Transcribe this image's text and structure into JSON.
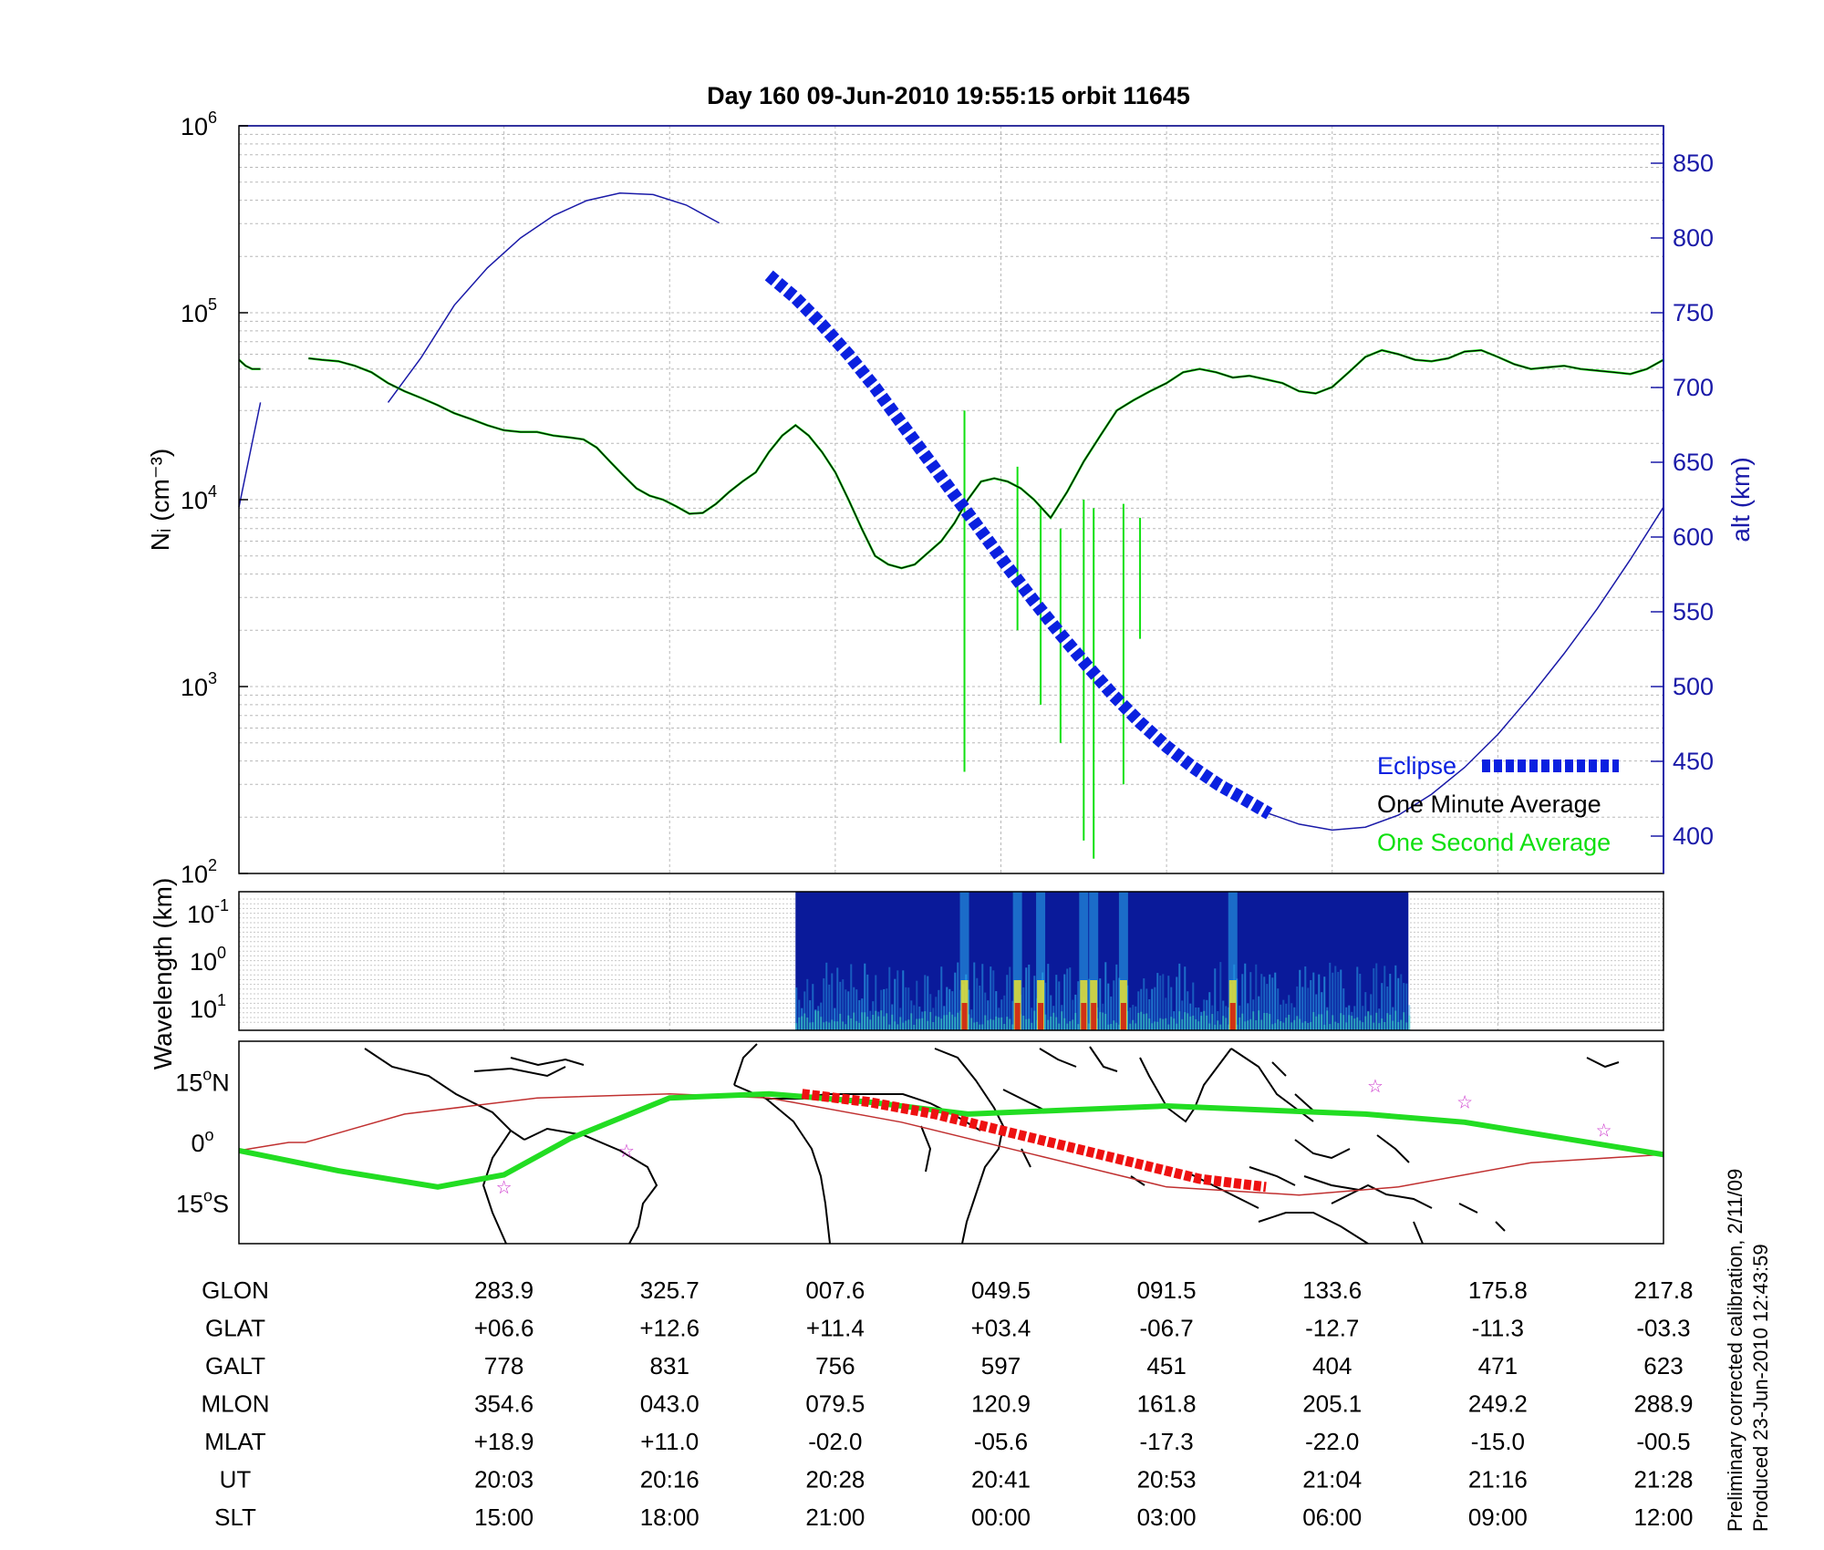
{
  "title": "Day 160  09-Jun-2010 19:55:15   orbit 11645",
  "colors": {
    "altitude": "#1a1aa8",
    "eclipse": "#0a20e0",
    "one_minute": "#000000",
    "one_second": "#10e010",
    "ground_track": "#22dd22",
    "orbit_line": "#c03030",
    "map_eclipse": "#ee1111",
    "stars": "#cc33cc",
    "spectro_bg": "#0a1a9a"
  },
  "chart_data": [
    {
      "type": "line",
      "ylabel": "Nᵢ (cm⁻³)",
      "y2label": "alt (km)",
      "yscale": "log",
      "ylim": [
        100,
        1000000
      ],
      "y_ticks": [
        {
          "value": 100,
          "base": "10",
          "exp": "2"
        },
        {
          "value": 1000,
          "base": "10",
          "exp": "3"
        },
        {
          "value": 10000,
          "base": "10",
          "exp": "4"
        },
        {
          "value": 100000,
          "base": "10",
          "exp": "5"
        },
        {
          "value": 1000000,
          "base": "10",
          "exp": "6"
        }
      ],
      "y2lim": [
        375,
        875
      ],
      "y2_ticks": [
        "400",
        "450",
        "500",
        "550",
        "600",
        "650",
        "700",
        "750",
        "800",
        "850"
      ],
      "grid": true,
      "legend": {
        "placement": "bottom-right",
        "entries": [
          "Eclipse",
          "One Minute Average",
          "One Second Average"
        ]
      },
      "series": [
        {
          "name": "One Minute Average",
          "segments": [
            {
              "x": [
                0.0,
                0.2,
                0.4,
                0.65
              ],
              "y": [
                56000,
                52000,
                50000,
                50000
              ]
            },
            {
              "x": [
                2.1,
                2.5,
                3.0,
                3.5,
                4.0,
                4.5,
                5.0,
                5.5,
                6.0,
                6.5,
                7.0,
                7.5,
                8.0,
                8.5,
                9.0,
                9.5,
                10.0,
                10.4,
                10.8,
                11.2,
                11.6,
                12.0,
                12.4,
                12.8,
                13.2,
                13.6,
                14.0,
                14.4,
                14.8,
                15.2,
                15.6,
                16.0,
                16.4,
                16.8,
                17.2,
                17.6,
                18.0,
                18.4,
                18.8,
                19.2,
                19.6,
                20.0,
                20.4,
                20.8,
                21.2,
                21.6,
                22.0,
                22.4,
                22.8,
                23.2,
                23.6,
                24.0,
                24.5,
                25.0,
                25.5,
                26.0,
                26.5,
                27.0,
                27.5,
                28.0,
                28.5,
                29.0,
                29.5,
                30.0,
                30.5,
                31.0,
                31.5,
                32.0,
                32.5,
                33.0,
                33.5,
                34.0,
                34.5,
                35.0,
                35.5,
                36.0,
                36.5,
                37.0,
                37.5,
                38.0,
                38.5,
                39.0,
                39.5,
                40.0,
                40.5,
                41.0,
                41.5,
                42.0,
                42.5,
                43.0
              ],
              "y": [
                57000,
                56000,
                55000,
                52000,
                48000,
                42000,
                38000,
                35000,
                32000,
                29000,
                27000,
                25000,
                23500,
                23000,
                23000,
                22000,
                21500,
                21000,
                19000,
                16000,
                13500,
                11500,
                10500,
                10000,
                9200,
                8400,
                8500,
                9500,
                11000,
                12500,
                14000,
                18000,
                22000,
                25000,
                22000,
                18000,
                14000,
                10000,
                7000,
                5000,
                4500,
                4300,
                4500,
                5200,
                6000,
                7500,
                10000,
                12500,
                13000,
                12500,
                11500,
                10000,
                8000,
                11000,
                16000,
                22000,
                30000,
                34000,
                38000,
                42000,
                48000,
                50000,
                48000,
                45000,
                46000,
                44000,
                42000,
                38000,
                37000,
                40000,
                48000,
                58000,
                63000,
                60000,
                56000,
                55000,
                57000,
                62000,
                63000,
                58000,
                53000,
                50000,
                51000,
                52000,
                50000,
                49000,
                48000,
                47000,
                50000,
                56000
              ]
            }
          ]
        },
        {
          "name": "One Second Average",
          "segments": [
            {
              "x": [
                0.0,
                0.2,
                0.4,
                0.65
              ],
              "y": [
                56000,
                52000,
                50000,
                50000
              ]
            },
            {
              "x": [
                2.1,
                2.5,
                3.0,
                3.5,
                4.0,
                4.5,
                5.0,
                5.5,
                6.0,
                6.5,
                7.0,
                7.5,
                8.0,
                8.5,
                9.0,
                9.5,
                10.0,
                10.4,
                10.8,
                11.2,
                11.6,
                12.0,
                12.4,
                12.8,
                13.2,
                13.6,
                14.0,
                14.4,
                14.8,
                15.2,
                15.6,
                16.0,
                16.4,
                16.8,
                17.2,
                17.6,
                18.0,
                18.4,
                18.8,
                19.2,
                19.6,
                20.0,
                20.4,
                20.8,
                21.2,
                21.6,
                22.0,
                22.4,
                22.8,
                23.2,
                23.6,
                24.0,
                24.5,
                25.0,
                25.5,
                26.0,
                26.5,
                27.0,
                27.5,
                28.0,
                28.5,
                29.0,
                29.5,
                30.0,
                30.5,
                31.0,
                31.5,
                32.0,
                32.5,
                33.0,
                33.5,
                34.0,
                34.5,
                35.0,
                35.5,
                36.0,
                36.5,
                37.0,
                37.5,
                38.0,
                38.5,
                39.0,
                39.5,
                40.0,
                40.5,
                41.0,
                41.5,
                42.0,
                42.5,
                43.0
              ],
              "y": [
                57000,
                56000,
                55000,
                52000,
                48000,
                42000,
                38000,
                35000,
                32000,
                29000,
                27000,
                25000,
                23500,
                23000,
                23000,
                22000,
                21500,
                21000,
                19000,
                16000,
                13500,
                11500,
                10500,
                10000,
                9200,
                8400,
                8500,
                9500,
                11000,
                12500,
                14000,
                18000,
                22000,
                25000,
                22000,
                18000,
                14000,
                10000,
                7000,
                5000,
                4500,
                4300,
                4500,
                5200,
                6000,
                7500,
                10000,
                12500,
                13000,
                12500,
                11500,
                10000,
                8000,
                11000,
                16000,
                22000,
                30000,
                34000,
                38000,
                42000,
                48000,
                50000,
                48000,
                45000,
                46000,
                44000,
                42000,
                38000,
                37000,
                40000,
                48000,
                58000,
                63000,
                60000,
                56000,
                55000,
                57000,
                62000,
                63000,
                58000,
                53000,
                50000,
                51000,
                52000,
                50000,
                49000,
                48000,
                47000,
                50000,
                56000
              ]
            }
          ],
          "spikes": [
            {
              "x": 21.9,
              "y_low": 350,
              "y_high": 30000
            },
            {
              "x": 23.5,
              "y_low": 2000,
              "y_high": 15000
            },
            {
              "x": 24.2,
              "y_low": 800,
              "y_high": 9000
            },
            {
              "x": 24.8,
              "y_low": 500,
              "y_high": 7000
            },
            {
              "x": 25.5,
              "y_low": 150,
              "y_high": 10000
            },
            {
              "x": 25.8,
              "y_low": 120,
              "y_high": 9000
            },
            {
              "x": 26.7,
              "y_low": 300,
              "y_high": 9500
            },
            {
              "x": 27.2,
              "y_low": 1800,
              "y_high": 8000
            }
          ]
        },
        {
          "name": "alt (km)",
          "axis": "right",
          "segments": [
            {
              "x": [
                0.0,
                0.65
              ],
              "y": [
                620,
                690
              ]
            },
            {
              "x": [
                4.5,
                5.5,
                6.5,
                7.5,
                8.5,
                9.5,
                10.5,
                11.5,
                12.5,
                13.5,
                14.5
              ],
              "y": [
                690,
                720,
                755,
                780,
                800,
                815,
                825,
                830,
                829,
                822,
                810
              ]
            }
          ]
        },
        {
          "name": "Eclipse",
          "axis": "right",
          "x": [
            16.0,
            16.8,
            17.6,
            18.4,
            19.2,
            20.0,
            20.8,
            21.6,
            22.4,
            23.2,
            24.0,
            24.8,
            25.6,
            26.4,
            27.2,
            28.0,
            28.8,
            29.6,
            30.4,
            31.1
          ],
          "y": [
            775,
            760,
            742,
            722,
            700,
            676,
            652,
            628,
            604,
            580,
            557,
            535,
            514,
            494,
            476,
            460,
            446,
            434,
            424,
            415
          ]
        },
        {
          "name": "alt tail",
          "axis": "right",
          "x": [
            31.1,
            32.0,
            33.0,
            34.0,
            35.0,
            36.0,
            37.0,
            38.0,
            39.0,
            40.0,
            41.0,
            42.0,
            43.0
          ],
          "y": [
            415,
            408,
            404,
            406,
            414,
            428,
            446,
            468,
            494,
            522,
            552,
            585,
            620
          ]
        }
      ]
    },
    {
      "type": "heatmap",
      "ylabel": "Wavelength (km)",
      "y_ticks": [
        {
          "base": "10",
          "exp": "-1"
        },
        {
          "base": "10",
          "exp": "0"
        },
        {
          "base": "10",
          "exp": "1"
        }
      ],
      "x_range": [
        16.8,
        35.3
      ],
      "bright_bands": [
        21.9,
        23.5,
        24.2,
        25.5,
        25.8,
        26.7,
        30.0
      ]
    },
    {
      "type": "scatter",
      "description_labels_only": true,
      "y_ticks": [
        {
          "deg": "15",
          "dir": "N",
          "value": 15
        },
        {
          "deg": "0",
          "dir": "",
          "value": 0
        },
        {
          "deg": "15",
          "dir": "S",
          "value": -15
        }
      ],
      "ylim": [
        -25,
        25
      ],
      "ground_track": {
        "x": [
          0,
          3,
          6,
          8,
          10,
          13,
          16,
          19,
          22,
          25,
          28,
          31,
          34,
          37,
          40,
          43
        ],
        "y": [
          -2,
          -7,
          -11,
          -8,
          1,
          11,
          12,
          10,
          7,
          8,
          9,
          8,
          7,
          5,
          1,
          -3
        ]
      },
      "orbit_line": {
        "x": [
          0,
          1.5,
          2,
          5,
          9,
          13,
          16,
          20,
          24,
          28,
          32,
          35,
          39,
          43
        ],
        "y": [
          -2,
          0,
          0,
          7,
          11,
          12,
          11,
          5,
          -3,
          -11,
          -13,
          -11,
          -5,
          -3
        ]
      },
      "map_eclipse": {
        "x": [
          17.0,
          19.0,
          21.0,
          23.0,
          25.0,
          27.0,
          29.0,
          31.0
        ],
        "y": [
          12.0,
          10.0,
          7.0,
          3.0,
          -1.0,
          -5.0,
          -9.0,
          -11.0
        ]
      },
      "stars": {
        "x": [
          8.0,
          11.7,
          34.3,
          37.0,
          41.2
        ],
        "y": [
          -11.0,
          -2.0,
          14.0,
          10.0,
          3.0
        ]
      }
    }
  ],
  "x_positions": [
    8,
    13,
    18,
    23,
    28,
    33,
    38,
    43
  ],
  "table": {
    "rows": [
      {
        "label": "GLON",
        "values": [
          "283.9",
          "325.7",
          "007.6",
          "049.5",
          "091.5",
          "133.6",
          "175.8",
          "217.8"
        ]
      },
      {
        "label": "GLAT",
        "values": [
          "+06.6",
          "+12.6",
          "+11.4",
          "+03.4",
          "-06.7",
          "-12.7",
          "-11.3",
          "-03.3"
        ]
      },
      {
        "label": "GALT",
        "values": [
          "778",
          "831",
          "756",
          "597",
          "451",
          "404",
          "471",
          "623"
        ]
      },
      {
        "label": "MLON",
        "values": [
          "354.6",
          "043.0",
          "079.5",
          "120.9",
          "161.8",
          "205.1",
          "249.2",
          "288.9"
        ]
      },
      {
        "label": "MLAT",
        "values": [
          "+18.9",
          "+11.0",
          "-02.0",
          "-05.6",
          "-17.3",
          "-22.0",
          "-15.0",
          "-00.5"
        ]
      },
      {
        "label": "UT",
        "values": [
          "20:03",
          "20:16",
          "20:28",
          "20:41",
          "20:53",
          "21:04",
          "21:16",
          "21:28"
        ]
      },
      {
        "label": "SLT",
        "values": [
          "15:00",
          "18:00",
          "21:00",
          "00:00",
          "03:00",
          "06:00",
          "09:00",
          "12:00"
        ]
      }
    ]
  },
  "footer": {
    "line1": "Preliminary corrected calibration, 2/11/09",
    "line2": "Produced 23-Jun-2010 12:43:59"
  }
}
